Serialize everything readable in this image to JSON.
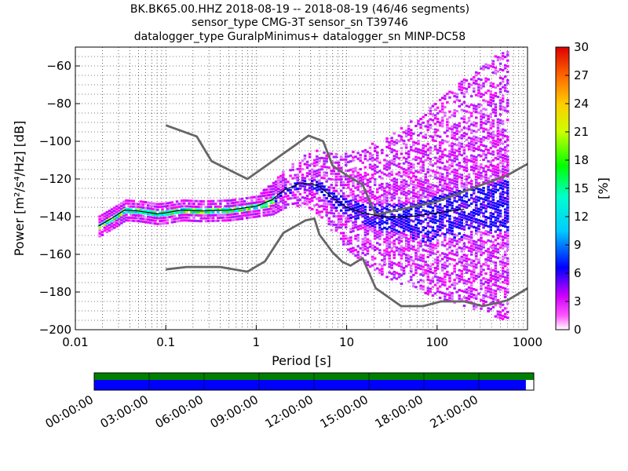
{
  "chart_data": {
    "type": "heatmap",
    "title_lines": [
      "BK.BK65.00.HHZ   2018-08-19 -- 2018-08-19  (46/46 segments)",
      "sensor_type CMG-3T sensor_sn T39746",
      "datalogger_type GuralpMinimus+ datalogger_sn MINP-DC58"
    ],
    "xlabel": "Period [s]",
    "ylabel": "Power [m²/s⁴/Hz] [dB]",
    "xscale": "log",
    "xlim": [
      0.01,
      1000
    ],
    "ylim": [
      -200,
      -50
    ],
    "x_ticks": [
      0.01,
      0.1,
      1,
      10,
      100,
      1000
    ],
    "x_tick_labels": [
      "0.01",
      "0.1",
      "1",
      "10",
      "100",
      "1000"
    ],
    "y_ticks": [
      -200,
      -180,
      -160,
      -140,
      -120,
      -100,
      -80,
      -60
    ],
    "y_tick_labels": [
      "−200",
      "−180",
      "−160",
      "−140",
      "−120",
      "−100",
      "−80",
      "−60"
    ],
    "grid": true,
    "colorbar": {
      "label": "[%]",
      "ticks": [
        0,
        3,
        6,
        9,
        12,
        15,
        18,
        21,
        24,
        27,
        30
      ],
      "tick_labels": [
        "0",
        "3",
        "6",
        "9",
        "12",
        "15",
        "18",
        "21",
        "24",
        "27",
        "30"
      ],
      "range": [
        0,
        30
      ]
    },
    "noise_models": [
      {
        "id": "nhnm",
        "x": [
          0.1,
          0.22,
          0.32,
          0.8,
          3.8,
          5.5,
          7,
          10,
          15,
          21,
          100,
          600,
          1000
        ],
        "y": [
          -91.5,
          -97.4,
          -110.5,
          -120,
          -97,
          -100,
          -113,
          -118,
          -123,
          -139,
          -132,
          -118,
          -112
        ]
      },
      {
        "id": "nlnm",
        "x": [
          0.1,
          0.17,
          0.4,
          0.8,
          1.25,
          2,
          3.5,
          4.4,
          5,
          7,
          9,
          11,
          15,
          21,
          40,
          70,
          110,
          200,
          320,
          600,
          1000
        ],
        "y": [
          -168,
          -166.7,
          -166.7,
          -169.2,
          -163.7,
          -148.6,
          -142,
          -141,
          -149.5,
          -159,
          -164,
          -166,
          -162,
          -178,
          -187.5,
          -187.5,
          -185,
          -185,
          -187.5,
          -184.4,
          -178
        ]
      }
    ],
    "mean_curve": {
      "x": [
        0.018,
        0.025,
        0.035,
        0.05,
        0.08,
        0.1,
        0.15,
        0.25,
        0.5,
        1,
        1.5,
        2,
        3,
        4,
        5,
        7,
        10,
        15,
        25,
        50,
        100,
        200
      ],
      "y": [
        -145,
        -141,
        -136.5,
        -137,
        -138.5,
        -138,
        -136.5,
        -137,
        -136.5,
        -134.5,
        -131,
        -126,
        -122.5,
        -122.5,
        -124,
        -130,
        -135,
        -138,
        -140,
        -140,
        -138,
        -136
      ]
    },
    "coverage_bar": {
      "ticks": [
        "00:00:00",
        "03:00:00",
        "06:00:00",
        "09:00:00",
        "12:00:00",
        "15:00:00",
        "18:00:00",
        "21:00:00"
      ],
      "upper_color": "#008000",
      "lower_color": "#0000ff",
      "lower_end_fraction": 0.982
    }
  }
}
